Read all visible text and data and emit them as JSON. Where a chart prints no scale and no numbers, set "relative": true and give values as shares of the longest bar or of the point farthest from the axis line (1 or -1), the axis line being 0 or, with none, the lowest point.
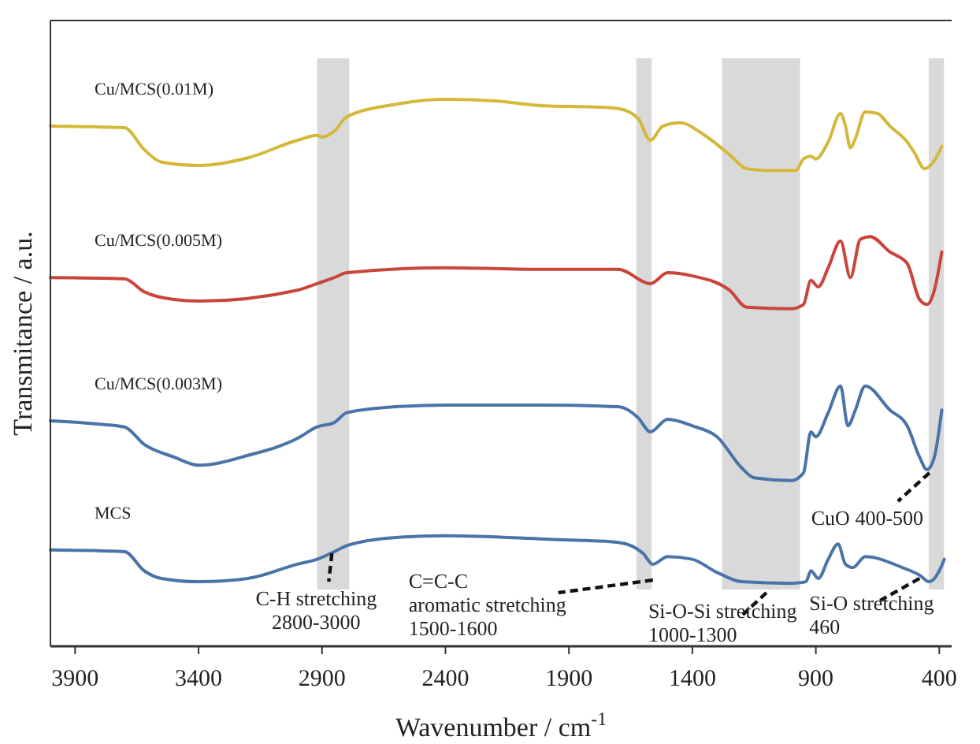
{
  "chart_data": {
    "type": "line",
    "relative": true,
    "xlabel": "Wavenumber / cm$^{-1}$",
    "ylabel": "Transmitance / a.u.",
    "xlim": [
      4000,
      350
    ],
    "xticks": [
      3900,
      3400,
      2900,
      2400,
      1900,
      1400,
      900,
      400
    ],
    "grid": false,
    "marker": "none",
    "line_style": "solid",
    "series": [
      {
        "name": "Cu/MCS(0.01M)",
        "color": "#d4b83a",
        "x": [
          4000,
          3700,
          3620,
          3550,
          3400,
          3200,
          3000,
          2920,
          2900,
          2850,
          2800,
          2600,
          2400,
          2200,
          2000,
          1800,
          1700,
          1620,
          1570,
          1520,
          1450,
          1350,
          1250,
          1180,
          1100,
          980,
          950,
          920,
          900,
          850,
          800,
          780,
          760,
          740,
          700,
          650,
          600,
          530,
          500,
          460,
          420,
          390
        ],
        "values": [
          0.951,
          0.948,
          0.908,
          0.885,
          0.879,
          0.893,
          0.925,
          0.934,
          0.931,
          0.942,
          0.968,
          0.991,
          1,
          0.997,
          0.988,
          0.986,
          0.983,
          0.965,
          0.925,
          0.951,
          0.957,
          0.934,
          0.899,
          0.873,
          0.87,
          0.87,
          0.891,
          0.896,
          0.891,
          0.922,
          0.974,
          0.951,
          0.911,
          0.928,
          0.977,
          0.974,
          0.951,
          0.922,
          0.902,
          0.873,
          0.888,
          0.914
        ]
      },
      {
        "name": "Cu/MCS(0.005M)",
        "color": "#c9453a",
        "x": [
          4000,
          3700,
          3620,
          3500,
          3400,
          3000,
          2920,
          2850,
          2800,
          2400,
          2000,
          1700,
          1570,
          1500,
          1400,
          1250,
          1180,
          1000,
          950,
          920,
          890,
          850,
          800,
          760,
          720,
          680,
          600,
          530,
          480,
          450,
          420,
          390
        ],
        "values": [
          0.674,
          0.672,
          0.648,
          0.634,
          0.631,
          0.651,
          0.663,
          0.674,
          0.683,
          0.692,
          0.689,
          0.689,
          0.663,
          0.683,
          0.677,
          0.651,
          0.62,
          0.617,
          0.625,
          0.669,
          0.657,
          0.692,
          0.741,
          0.674,
          0.744,
          0.749,
          0.721,
          0.7,
          0.634,
          0.625,
          0.651,
          0.721
        ]
      },
      {
        "name": "Cu/MCS(0.003M)",
        "color": "#4a73a8",
        "x": [
          4000,
          3800,
          3700,
          3620,
          3500,
          3400,
          3200,
          3000,
          2920,
          2850,
          2800,
          2600,
          2400,
          2000,
          1700,
          1620,
          1570,
          1500,
          1400,
          1300,
          1200,
          1150,
          1000,
          950,
          920,
          900,
          850,
          800,
          770,
          740,
          700,
          600,
          530,
          480,
          450,
          420,
          390
        ],
        "values": [
          0.412,
          0.406,
          0.401,
          0.369,
          0.346,
          0.331,
          0.349,
          0.38,
          0.401,
          0.409,
          0.427,
          0.438,
          0.441,
          0.441,
          0.438,
          0.418,
          0.392,
          0.415,
          0.403,
          0.383,
          0.326,
          0.308,
          0.303,
          0.317,
          0.392,
          0.383,
          0.427,
          0.476,
          0.403,
          0.432,
          0.476,
          0.432,
          0.403,
          0.346,
          0.323,
          0.346,
          0.432
        ]
      },
      {
        "name": "MCS",
        "color": "#4a73a8",
        "x": [
          4000,
          3700,
          3620,
          3550,
          3400,
          3200,
          3000,
          2920,
          2850,
          2800,
          2600,
          2400,
          2000,
          1700,
          1600,
          1560,
          1500,
          1400,
          1300,
          1200,
          1000,
          940,
          920,
          890,
          850,
          810,
          780,
          750,
          700,
          550,
          480,
          440,
          400,
          380
        ],
        "values": [
          0.176,
          0.173,
          0.138,
          0.124,
          0.118,
          0.124,
          0.15,
          0.159,
          0.173,
          0.184,
          0.199,
          0.202,
          0.196,
          0.19,
          0.17,
          0.15,
          0.164,
          0.159,
          0.135,
          0.118,
          0.115,
          0.118,
          0.138,
          0.124,
          0.159,
          0.187,
          0.15,
          0.144,
          0.164,
          0.144,
          0.13,
          0.118,
          0.138,
          0.159
        ]
      }
    ],
    "bands": [
      {
        "axis": "x",
        "from": 2920,
        "to": 2790,
        "color": "#d9d9d9"
      },
      {
        "axis": "x",
        "from": 1627,
        "to": 1565,
        "color": "#d9d9d9"
      },
      {
        "axis": "x",
        "from": 1280,
        "to": 964,
        "color": "#d9d9d9"
      },
      {
        "axis": "x",
        "from": 443,
        "to": 381,
        "color": "#d9d9d9"
      }
    ],
    "annotations": [
      {
        "text": "C-H stretching\n2800-3000",
        "x": 2860,
        "y": 0.17
      },
      {
        "text": "C=C-C\naromatic stretching\n1500-1600",
        "x": 1560,
        "y": 0.121
      },
      {
        "text": "Si-O-Si stretching\n1000-1300",
        "x": 1100,
        "y": 0.098
      },
      {
        "text": "Si-O stretching\n460",
        "x": 480,
        "y": 0.124
      },
      {
        "text": "CuO  400-500",
        "x": 440,
        "y": 0.317
      }
    ]
  }
}
